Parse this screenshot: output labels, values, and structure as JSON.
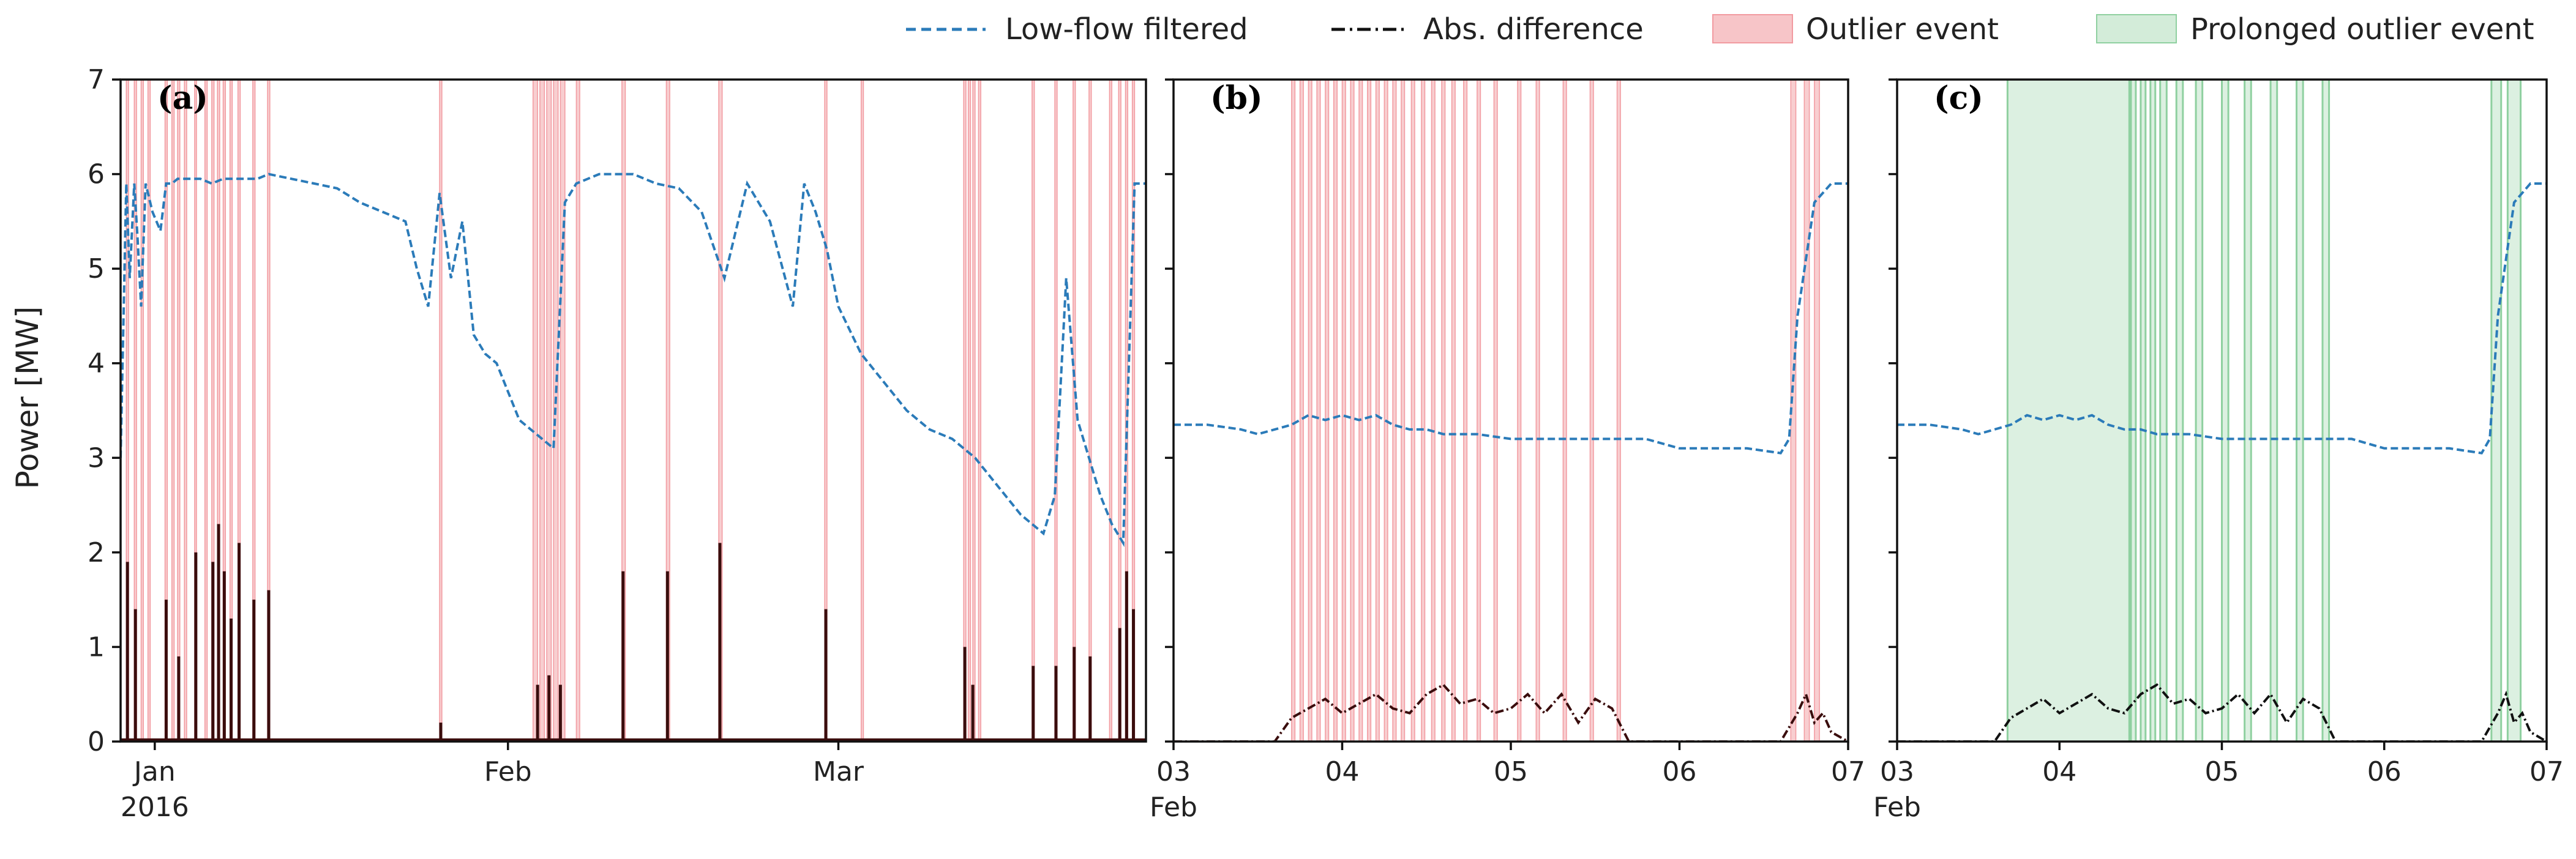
{
  "colors": {
    "low_flow": "#2b7bb9",
    "abs_diff": "#3a0d0d",
    "outlier_fill": "#f7c5c8",
    "outlier_edge": "#f29aa0",
    "prolonged_fill": "#d3ecd9",
    "prolonged_edge": "#8fd0a0"
  },
  "legend": {
    "items": [
      {
        "label": "Low-flow filtered",
        "style": "dashed-line",
        "color": "#2b7bb9"
      },
      {
        "label": "Abs. difference",
        "style": "dashdot-line",
        "color": "#111111"
      },
      {
        "label": "Outlier event",
        "style": "patch",
        "color": "#f7c5c8"
      },
      {
        "label": "Prolonged outlier event",
        "style": "patch",
        "color": "#d3ecd9"
      }
    ]
  },
  "y_axis": {
    "label": "Power [MW]",
    "ticks": [
      "0",
      "1",
      "2",
      "3",
      "4",
      "5",
      "6",
      "7"
    ]
  },
  "chart_data": [
    {
      "panel": "(a)",
      "type": "line",
      "ylabel": "Power [MW]",
      "ylim": [
        0,
        7
      ],
      "xlim_days": [
        -3,
        87
      ],
      "x_ticks": [
        {
          "day": 0,
          "label": "Jan",
          "sublabel": "2016"
        },
        {
          "day": 31,
          "label": "Feb",
          "sublabel": ""
        },
        {
          "day": 60,
          "label": "Mar",
          "sublabel": ""
        }
      ],
      "outlier_events_days": [
        [
          -2.5,
          -2.3
        ],
        [
          -1.8,
          -1.6
        ],
        [
          -1.2,
          -1.0
        ],
        [
          -0.6,
          -0.4
        ],
        [
          0.9,
          1.1
        ],
        [
          1.5,
          1.7
        ],
        [
          2.0,
          2.2
        ],
        [
          2.6,
          2.8
        ],
        [
          3.5,
          3.6
        ],
        [
          4.4,
          4.6
        ],
        [
          5.0,
          5.2
        ],
        [
          5.5,
          5.7
        ],
        [
          6.0,
          6.2
        ],
        [
          6.6,
          6.8
        ],
        [
          7.3,
          7.5
        ],
        [
          8.6,
          8.8
        ],
        [
          9.9,
          10.1
        ],
        [
          25.0,
          25.2
        ],
        [
          33.2,
          33.6
        ],
        [
          33.8,
          34.2
        ],
        [
          34.4,
          34.8
        ],
        [
          35.0,
          35.4
        ],
        [
          35.6,
          36.0
        ],
        [
          37.0,
          37.3
        ],
        [
          41.0,
          41.3
        ],
        [
          44.9,
          45.2
        ],
        [
          49.5,
          49.8
        ],
        [
          58.8,
          59.0
        ],
        [
          62.0,
          62.2
        ],
        [
          71.0,
          71.2
        ],
        [
          71.4,
          71.6
        ],
        [
          71.8,
          72.0
        ],
        [
          72.3,
          72.5
        ],
        [
          77.0,
          77.2
        ],
        [
          79.0,
          79.2
        ],
        [
          80.6,
          80.8
        ],
        [
          82.0,
          82.2
        ],
        [
          83.8,
          84.0
        ],
        [
          84.6,
          84.8
        ],
        [
          85.2,
          85.4
        ],
        [
          85.8,
          86.0
        ]
      ],
      "low_flow_filtered": {
        "x_days": [
          -3,
          -2.5,
          -2.2,
          -1.8,
          -1.5,
          -1.2,
          -0.8,
          -0.2,
          0.5,
          1.0,
          1.5,
          2.0,
          3,
          4,
          5,
          6,
          7,
          8,
          9,
          10,
          12,
          14,
          16,
          18,
          20,
          22,
          23,
          24,
          25,
          26,
          27,
          28,
          29,
          30,
          31,
          32,
          33,
          34,
          35,
          36,
          37,
          38,
          39,
          40,
          42,
          44,
          46,
          48,
          50,
          52,
          54,
          56,
          57,
          58,
          59,
          60,
          62,
          64,
          66,
          68,
          70,
          72,
          74,
          76,
          78,
          79,
          80,
          81,
          82,
          83,
          84,
          85,
          86,
          87
        ],
        "values": [
          3.0,
          5.9,
          4.9,
          5.9,
          5.3,
          4.6,
          5.9,
          5.6,
          5.4,
          5.9,
          5.9,
          5.95,
          5.95,
          5.95,
          5.9,
          5.95,
          5.95,
          5.95,
          5.95,
          6.0,
          5.95,
          5.9,
          5.85,
          5.7,
          5.6,
          5.5,
          5.0,
          4.6,
          5.8,
          4.9,
          5.5,
          4.3,
          4.1,
          4.0,
          3.7,
          3.4,
          3.3,
          3.2,
          3.1,
          5.7,
          5.9,
          5.95,
          6.0,
          6.0,
          6.0,
          5.9,
          5.85,
          5.6,
          4.9,
          5.9,
          5.5,
          4.6,
          5.9,
          5.6,
          5.2,
          4.6,
          4.1,
          3.8,
          3.5,
          3.3,
          3.2,
          3.0,
          2.7,
          2.4,
          2.2,
          2.6,
          4.9,
          3.4,
          3.0,
          2.6,
          2.3,
          2.1,
          5.9,
          5.9
        ]
      },
      "abs_difference_peaks": [
        {
          "day": -2.4,
          "value": 1.9
        },
        {
          "day": -1.7,
          "value": 1.4
        },
        {
          "day": 1.0,
          "value": 1.5
        },
        {
          "day": 2.1,
          "value": 0.9
        },
        {
          "day": 3.6,
          "value": 2.0
        },
        {
          "day": 5.1,
          "value": 1.9
        },
        {
          "day": 5.6,
          "value": 2.3
        },
        {
          "day": 6.1,
          "value": 1.8
        },
        {
          "day": 6.7,
          "value": 1.3
        },
        {
          "day": 7.4,
          "value": 2.1
        },
        {
          "day": 8.7,
          "value": 1.5
        },
        {
          "day": 10.0,
          "value": 1.6
        },
        {
          "day": 25.1,
          "value": 0.2
        },
        {
          "day": 33.6,
          "value": 0.6
        },
        {
          "day": 34.6,
          "value": 0.7
        },
        {
          "day": 35.6,
          "value": 0.6
        },
        {
          "day": 41.1,
          "value": 1.8
        },
        {
          "day": 45.0,
          "value": 1.8
        },
        {
          "day": 49.6,
          "value": 2.1
        },
        {
          "day": 58.9,
          "value": 1.4
        },
        {
          "day": 71.1,
          "value": 1.0
        },
        {
          "day": 71.8,
          "value": 0.6
        },
        {
          "day": 77.1,
          "value": 0.8
        },
        {
          "day": 79.1,
          "value": 0.8
        },
        {
          "day": 80.7,
          "value": 1.0
        },
        {
          "day": 82.1,
          "value": 0.9
        },
        {
          "day": 84.7,
          "value": 1.2
        },
        {
          "day": 85.3,
          "value": 1.8
        },
        {
          "day": 85.9,
          "value": 1.4
        }
      ]
    },
    {
      "panel": "(b)",
      "type": "line",
      "ylim": [
        0,
        7
      ],
      "xlim_days": [
        3,
        7
      ],
      "x_ticks": [
        {
          "day": 3,
          "label": "03",
          "sublabel": "Feb"
        },
        {
          "day": 4,
          "label": "04",
          "sublabel": ""
        },
        {
          "day": 5,
          "label": "05",
          "sublabel": ""
        },
        {
          "day": 6,
          "label": "06",
          "sublabel": ""
        },
        {
          "day": 7,
          "label": "07",
          "sublabel": ""
        }
      ],
      "outlier_events_days": [
        [
          3.7,
          3.72
        ],
        [
          3.75,
          3.77
        ],
        [
          3.8,
          3.82
        ],
        [
          3.85,
          3.87
        ],
        [
          3.9,
          3.92
        ],
        [
          3.95,
          3.97
        ],
        [
          4.0,
          4.02
        ],
        [
          4.05,
          4.07
        ],
        [
          4.1,
          4.12
        ],
        [
          4.15,
          4.17
        ],
        [
          4.2,
          4.22
        ],
        [
          4.25,
          4.27
        ],
        [
          4.3,
          4.32
        ],
        [
          4.35,
          4.37
        ],
        [
          4.41,
          4.43
        ],
        [
          4.47,
          4.49
        ],
        [
          4.53,
          4.55
        ],
        [
          4.59,
          4.61
        ],
        [
          4.65,
          4.67
        ],
        [
          4.72,
          4.74
        ],
        [
          4.8,
          4.82
        ],
        [
          4.9,
          4.92
        ],
        [
          5.04,
          5.06
        ],
        [
          5.15,
          5.17
        ],
        [
          5.31,
          5.33
        ],
        [
          5.47,
          5.49
        ],
        [
          5.63,
          5.65
        ],
        [
          6.66,
          6.69
        ],
        [
          6.74,
          6.77
        ],
        [
          6.8,
          6.83
        ]
      ],
      "low_flow_filtered": {
        "x_days": [
          3.0,
          3.2,
          3.4,
          3.5,
          3.7,
          3.8,
          3.9,
          4.0,
          4.1,
          4.2,
          4.3,
          4.4,
          4.5,
          4.6,
          4.8,
          5.0,
          5.2,
          5.4,
          5.6,
          5.8,
          6.0,
          6.2,
          6.4,
          6.6,
          6.65,
          6.7,
          6.8,
          6.9,
          7.0
        ],
        "values": [
          3.35,
          3.35,
          3.3,
          3.25,
          3.35,
          3.45,
          3.4,
          3.45,
          3.4,
          3.45,
          3.35,
          3.3,
          3.3,
          3.25,
          3.25,
          3.2,
          3.2,
          3.2,
          3.2,
          3.2,
          3.1,
          3.1,
          3.1,
          3.05,
          3.2,
          4.5,
          5.7,
          5.9,
          5.9
        ]
      },
      "abs_difference": {
        "x_days": [
          3.0,
          3.6,
          3.7,
          3.8,
          3.9,
          4.0,
          4.1,
          4.2,
          4.3,
          4.4,
          4.5,
          4.6,
          4.7,
          4.8,
          4.9,
          5.0,
          5.1,
          5.2,
          5.3,
          5.4,
          5.5,
          5.6,
          5.7,
          6.0,
          6.6,
          6.7,
          6.75,
          6.8,
          6.85,
          6.9,
          7.0
        ],
        "values": [
          0.0,
          0.0,
          0.25,
          0.35,
          0.45,
          0.3,
          0.4,
          0.5,
          0.35,
          0.3,
          0.5,
          0.6,
          0.4,
          0.45,
          0.3,
          0.35,
          0.5,
          0.3,
          0.5,
          0.2,
          0.45,
          0.35,
          0.0,
          0.0,
          0.0,
          0.3,
          0.5,
          0.2,
          0.3,
          0.1,
          0.0
        ]
      }
    },
    {
      "panel": "(c)",
      "type": "line",
      "ylim": [
        0,
        7
      ],
      "xlim_days": [
        3,
        7
      ],
      "x_ticks": [
        {
          "day": 3,
          "label": "03",
          "sublabel": "Feb"
        },
        {
          "day": 4,
          "label": "04",
          "sublabel": ""
        },
        {
          "day": 5,
          "label": "05",
          "sublabel": ""
        },
        {
          "day": 6,
          "label": "06",
          "sublabel": ""
        },
        {
          "day": 7,
          "label": "07",
          "sublabel": ""
        }
      ],
      "prolonged_events_days": [
        [
          3.68,
          4.43
        ],
        [
          4.44,
          4.47
        ],
        [
          4.5,
          4.53
        ],
        [
          4.56,
          4.59
        ],
        [
          4.62,
          4.66
        ],
        [
          4.72,
          4.76
        ],
        [
          4.84,
          4.88
        ],
        [
          5.0,
          5.04
        ],
        [
          5.14,
          5.18
        ],
        [
          5.3,
          5.34
        ],
        [
          5.46,
          5.5
        ],
        [
          5.62,
          5.66
        ],
        [
          6.66,
          6.72
        ],
        [
          6.76,
          6.84
        ]
      ],
      "low_flow_filtered": {
        "x_days": [
          3.0,
          3.2,
          3.4,
          3.5,
          3.7,
          3.8,
          3.9,
          4.0,
          4.1,
          4.2,
          4.3,
          4.4,
          4.5,
          4.6,
          4.8,
          5.0,
          5.2,
          5.4,
          5.6,
          5.8,
          6.0,
          6.2,
          6.4,
          6.6,
          6.65,
          6.7,
          6.8,
          6.9,
          7.0
        ],
        "values": [
          3.35,
          3.35,
          3.3,
          3.25,
          3.35,
          3.45,
          3.4,
          3.45,
          3.4,
          3.45,
          3.35,
          3.3,
          3.3,
          3.25,
          3.25,
          3.2,
          3.2,
          3.2,
          3.2,
          3.2,
          3.1,
          3.1,
          3.1,
          3.05,
          3.2,
          4.5,
          5.7,
          5.9,
          5.9
        ]
      },
      "abs_difference": {
        "x_days": [
          3.0,
          3.6,
          3.7,
          3.8,
          3.9,
          4.0,
          4.1,
          4.2,
          4.3,
          4.4,
          4.5,
          4.6,
          4.7,
          4.8,
          4.9,
          5.0,
          5.1,
          5.2,
          5.3,
          5.4,
          5.5,
          5.6,
          5.7,
          6.0,
          6.6,
          6.7,
          6.75,
          6.8,
          6.85,
          6.9,
          7.0
        ],
        "values": [
          0.0,
          0.0,
          0.25,
          0.35,
          0.45,
          0.3,
          0.4,
          0.5,
          0.35,
          0.3,
          0.5,
          0.6,
          0.4,
          0.45,
          0.3,
          0.35,
          0.5,
          0.3,
          0.5,
          0.2,
          0.45,
          0.35,
          0.0,
          0.0,
          0.0,
          0.3,
          0.5,
          0.2,
          0.3,
          0.1,
          0.0
        ]
      }
    }
  ]
}
